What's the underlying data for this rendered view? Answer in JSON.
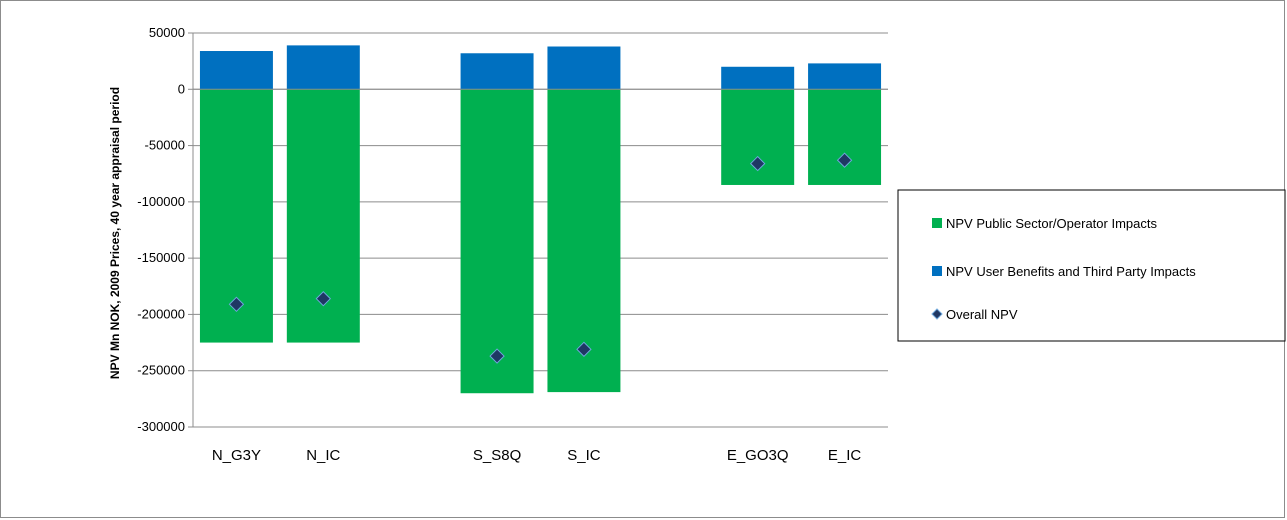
{
  "chart_data": {
    "type": "bar",
    "stacked": true,
    "title": "",
    "xlabel": "",
    "ylabel": "NPV Mn NOK, 2009 Prices, 40 year appraisal period",
    "ylim": [
      -300000,
      50000
    ],
    "yticks": [
      50000,
      0,
      -50000,
      -100000,
      -150000,
      -200000,
      -250000,
      -300000
    ],
    "ytick_labels": [
      "50000",
      "0",
      "-50000",
      "-100000",
      "-150000",
      "-200000",
      "-250000",
      "-300000"
    ],
    "grid": "horizontal",
    "legend_position": "right",
    "categories": [
      "N_G3Y",
      "N_IC",
      "",
      "S_S8Q",
      "S_IC",
      "",
      "E_GO3Q",
      "E_IC"
    ],
    "series": [
      {
        "name": "NPV Public Sector/Operator Impacts",
        "kind": "bar",
        "color": "#00b050",
        "values": [
          -225000,
          -225000,
          null,
          -270000,
          -269000,
          null,
          -85000,
          -85000
        ]
      },
      {
        "name": "NPV User Benefits and Third Party Impacts",
        "kind": "bar",
        "color": "#0070c0",
        "values": [
          34000,
          39000,
          null,
          32000,
          38000,
          null,
          20000,
          23000
        ]
      },
      {
        "name": "Overall NPV",
        "kind": "marker",
        "color": "#1f3864",
        "values": [
          -191000,
          -186000,
          null,
          -237000,
          -231000,
          null,
          -66000,
          -63000
        ]
      }
    ]
  }
}
